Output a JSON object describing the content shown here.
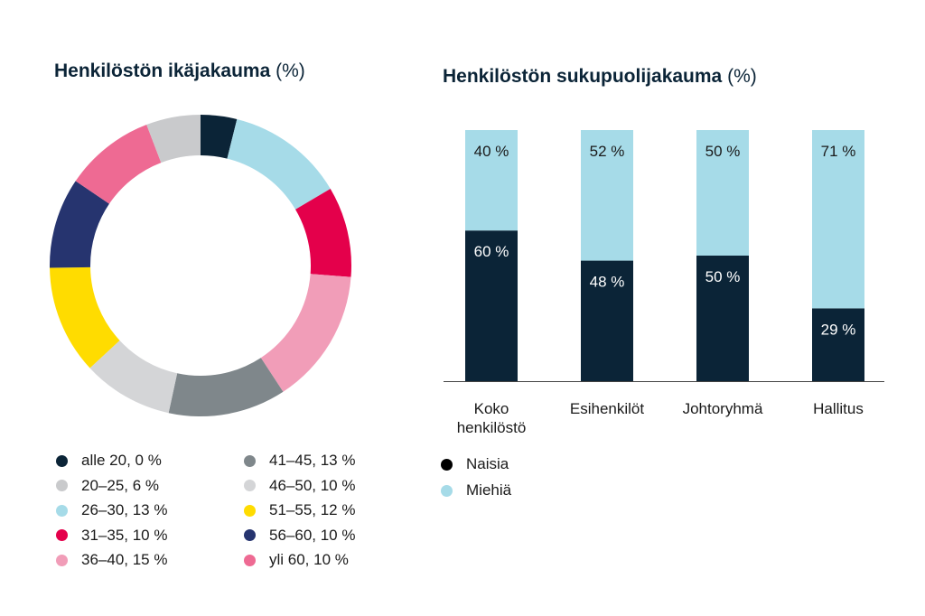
{
  "age_chart": {
    "title": "Henkilöstön ikäjakauma",
    "title_unit": "(%)"
  },
  "gender_chart": {
    "title": "Henkilöstön sukupuolijakauma",
    "title_unit": "(%)"
  },
  "chart_data": [
    {
      "type": "pie",
      "title": "Henkilöstön ikäjakauma (%)",
      "donut": true,
      "slices": [
        {
          "label": "alle 20, 0 %",
          "category": "alle 20",
          "value": 0,
          "color": "#0b2437"
        },
        {
          "label": "26–30, 13 %",
          "category": "26–30",
          "value": 13,
          "color": "#a6dbe8"
        },
        {
          "label": "31–35, 10 %",
          "category": "31–35",
          "value": 10,
          "color": "#e4004b"
        },
        {
          "label": "36–40, 15 %",
          "category": "36–40",
          "value": 15,
          "color": "#f19db8"
        },
        {
          "label": "41–45, 13 %",
          "category": "41–45",
          "value": 13,
          "color": "#7f878b"
        },
        {
          "label": "46–50, 10 %",
          "category": "46–50",
          "value": 10,
          "color": "#d4d5d7"
        },
        {
          "label": "51–55, 12 %",
          "category": "51–55",
          "value": 12,
          "color": "#ffdc00"
        },
        {
          "label": "56–60, 10 %",
          "category": "56–60",
          "value": 10,
          "color": "#26346f"
        },
        {
          "label": "yli 60, 10 %",
          "category": "yli 60",
          "value": 10,
          "color": "#ee6a93"
        },
        {
          "label": "20–25, 6 %",
          "category": "20–25",
          "value": 6,
          "color": "#c9cacc"
        }
      ],
      "legend": [
        {
          "label": "alle 20, 0 %",
          "color": "#0b2437"
        },
        {
          "label": "20–25, 6 %",
          "color": "#c9cacc"
        },
        {
          "label": "26–30, 13 %",
          "color": "#a6dbe8"
        },
        {
          "label": "31–35, 10 %",
          "color": "#e4004b"
        },
        {
          "label": "36–40, 15 %",
          "color": "#f19db8"
        },
        {
          "label": "41–45, 13 %",
          "color": "#7f878b"
        },
        {
          "label": "46–50, 10 %",
          "color": "#d4d5d7"
        },
        {
          "label": "51–55, 12 %",
          "color": "#ffdc00"
        },
        {
          "label": "56–60, 10 %",
          "color": "#26346f"
        },
        {
          "label": "yli 60, 10 %",
          "color": "#ee6a93"
        }
      ],
      "legend_placement": "bottom"
    },
    {
      "type": "bar",
      "stacked": true,
      "title": "Henkilöstön sukupuolijakauma (%)",
      "categories": [
        "Koko henkilöstö",
        "Esihenkilöt",
        "Johtoryhmä",
        "Hallitus"
      ],
      "category_lines": [
        [
          "Koko",
          "henkilöstö"
        ],
        [
          "Esihenkilöt"
        ],
        [
          "Johtoryhmä"
        ],
        [
          "Hallitus"
        ]
      ],
      "series": [
        {
          "name": "Naisia",
          "values": [
            60,
            48,
            50,
            29
          ],
          "labels": [
            "60 %",
            "48 %",
            "50 %",
            "29 %"
          ],
          "color": "#0b2437",
          "label_color": "#ffffff"
        },
        {
          "name": "Miehiä",
          "values": [
            40,
            52,
            50,
            71
          ],
          "labels": [
            "40 %",
            "52 %",
            "50 %",
            "71 %"
          ],
          "color": "#a6dbe8",
          "label_color": "#1a1a1a"
        }
      ],
      "ylim": [
        0,
        100
      ],
      "grid": false,
      "legend_placement": "bottom-left"
    }
  ]
}
